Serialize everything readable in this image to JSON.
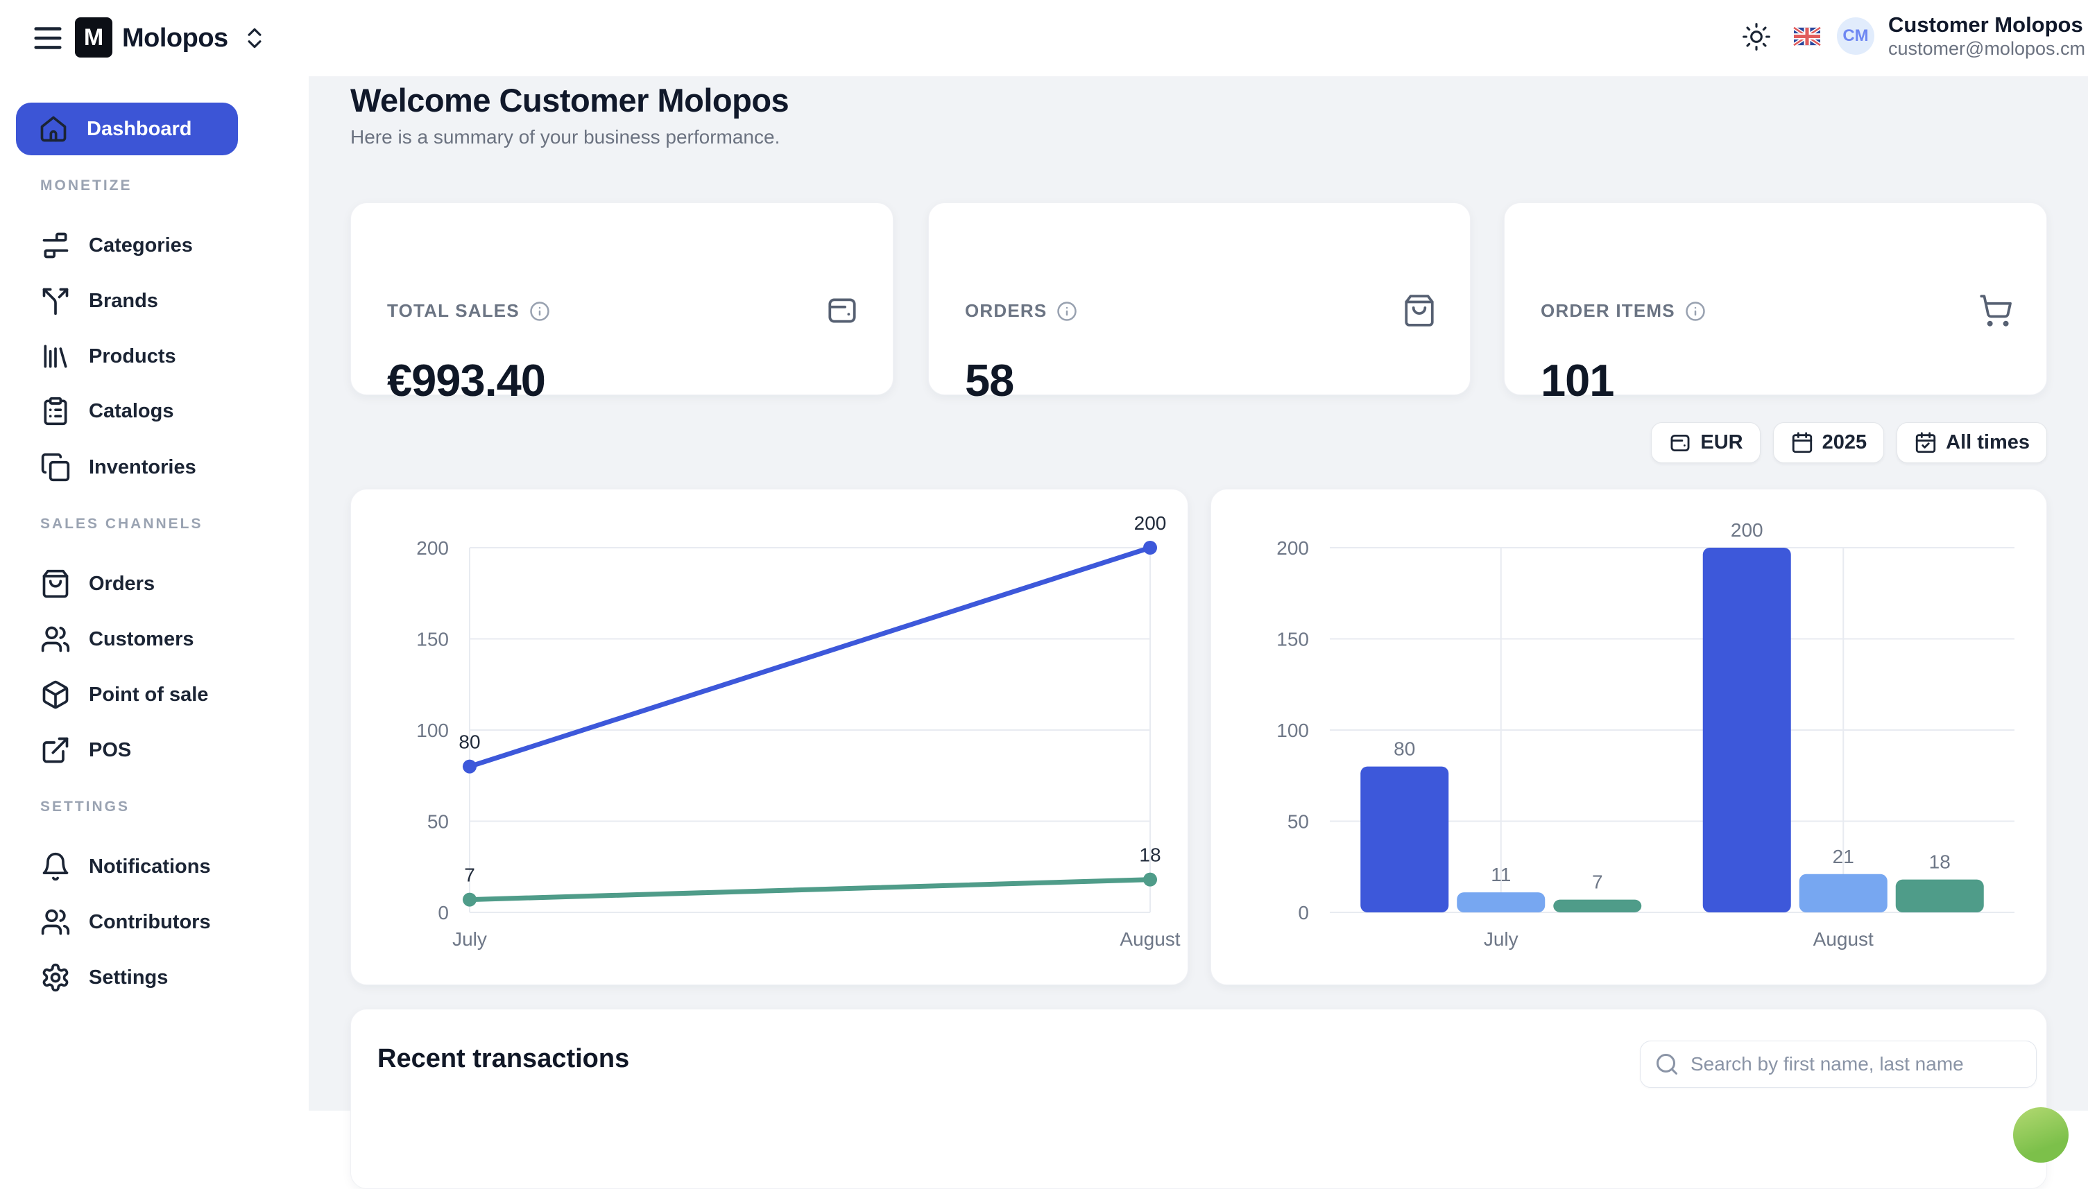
{
  "header": {
    "brand": "Molopos",
    "brand_initial": "M",
    "user": {
      "initials": "CM",
      "name": "Customer Molopos",
      "email": "customer@molopos.cm"
    }
  },
  "sidebar": {
    "active_item": {
      "label": "Dashboard",
      "icon": "home-icon"
    },
    "sections": [
      {
        "label": "MONETIZE",
        "items": [
          {
            "label": "Categories",
            "icon": "categories-icon"
          },
          {
            "label": "Brands",
            "icon": "split-arrow-icon"
          },
          {
            "label": "Products",
            "icon": "library-icon"
          },
          {
            "label": "Catalogs",
            "icon": "clipboard-list-icon"
          },
          {
            "label": "Inventories",
            "icon": "copy-icon"
          }
        ]
      },
      {
        "label": "SALES CHANNELS",
        "items": [
          {
            "label": "Orders",
            "icon": "shopping-bag-icon"
          },
          {
            "label": "Customers",
            "icon": "users-icon"
          },
          {
            "label": "Point of sale",
            "icon": "package-icon"
          },
          {
            "label": "POS",
            "icon": "external-link-icon"
          }
        ]
      },
      {
        "label": "SETTINGS",
        "items": [
          {
            "label": "Notifications",
            "icon": "bell-icon"
          },
          {
            "label": "Contributors",
            "icon": "users-icon"
          },
          {
            "label": "Settings",
            "icon": "gear-icon"
          }
        ]
      }
    ]
  },
  "main": {
    "title": "Welcome Customer Molopos",
    "subtitle": "Here is a summary of your business performance.",
    "stat_cards": [
      {
        "label": "TOTAL SALES",
        "value": "€993.40",
        "icon": "wallet-icon"
      },
      {
        "label": "ORDERS",
        "value": "58",
        "icon": "shopping-bag-icon"
      },
      {
        "label": "ORDER ITEMS",
        "value": "101",
        "icon": "shopping-cart-icon"
      }
    ],
    "filters": [
      {
        "label": "EUR",
        "icon": "wallet-icon"
      },
      {
        "label": "2025",
        "icon": "calendar-icon"
      },
      {
        "label": "All times",
        "icon": "calendar-check-icon"
      }
    ],
    "transactions": {
      "title": "Recent transactions",
      "search_placeholder": "Search by first name, last name"
    }
  },
  "chart_data": [
    {
      "type": "line",
      "categories": [
        "July",
        "August"
      ],
      "series": [
        {
          "name": "blue-series",
          "color": "#3d58da",
          "values": [
            80,
            200
          ]
        },
        {
          "name": "green-series",
          "color": "#4f9c89",
          "values": [
            7,
            18
          ]
        }
      ],
      "ylim": [
        0,
        200
      ],
      "yticks": [
        0,
        50,
        100,
        150,
        200
      ],
      "grid": true,
      "point_labels": true,
      "legend_position": "none"
    },
    {
      "type": "bar",
      "categories": [
        "July",
        "August"
      ],
      "series": [
        {
          "name": "blue-series",
          "color": "#3d58da",
          "values": [
            80,
            200
          ]
        },
        {
          "name": "light-blue-series",
          "color": "#77a7f1",
          "values": [
            11,
            21
          ]
        },
        {
          "name": "green-series",
          "color": "#4f9c89",
          "values": [
            7,
            18
          ]
        }
      ],
      "ylim": [
        0,
        200
      ],
      "yticks": [
        0,
        50,
        100,
        150,
        200
      ],
      "grid": true,
      "bar_labels": true,
      "legend_position": "none"
    }
  ],
  "colors": {
    "accent_blue": "#3c55d6",
    "light_blue": "#77a7f1",
    "teal_green": "#4f9c89",
    "page_bg": "#f1f3f6",
    "fab_green": "#7cc04a"
  }
}
